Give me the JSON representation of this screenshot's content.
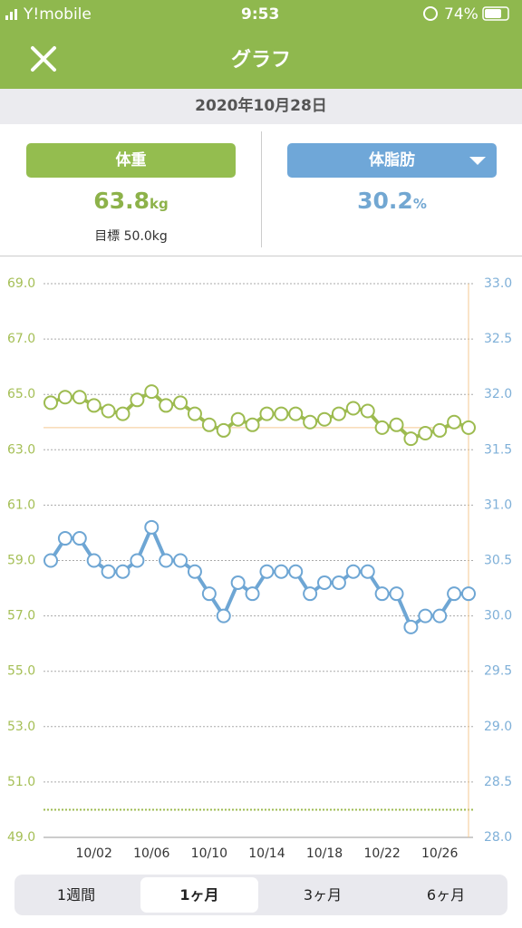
{
  "status_bar": {
    "carrier": "Y!mobile",
    "time": "9:53",
    "battery": "74%"
  },
  "header": {
    "title": "グラフ"
  },
  "date": "2020年10月28日",
  "weight": {
    "label": "体重",
    "value": "63.8",
    "unit": "kg",
    "goal": "目標 50.0kg"
  },
  "body_fat": {
    "label": "体脂肪",
    "value": "30.2",
    "unit": "%"
  },
  "chart_data": {
    "type": "line",
    "categories": [
      null,
      null,
      null,
      "10/02",
      null,
      null,
      null,
      "10/06",
      null,
      null,
      null,
      "10/10",
      null,
      null,
      null,
      "10/14",
      null,
      null,
      null,
      "10/18",
      null,
      null,
      null,
      "10/22",
      null,
      null,
      null,
      "10/26",
      null,
      null
    ],
    "series": [
      {
        "color": "#9dbb50",
        "values": [
          64.7,
          64.9,
          64.9,
          64.6,
          64.4,
          64.3,
          64.8,
          65.1,
          64.6,
          64.7,
          64.3,
          63.9,
          63.7,
          64.1,
          63.9,
          64.3,
          64.3,
          64.3,
          64.0,
          64.1,
          64.3,
          64.5,
          64.4,
          63.8,
          63.9,
          63.4,
          63.6,
          63.7,
          64.0,
          63.8
        ]
      },
      {
        "color": "#6ea6d4",
        "axis": "y2",
        "values": [
          30.5,
          30.7,
          30.7,
          30.5,
          30.4,
          30.4,
          30.5,
          30.8,
          30.5,
          30.5,
          30.4,
          30.2,
          30.0,
          30.3,
          30.2,
          30.4,
          30.4,
          30.4,
          30.2,
          30.3,
          30.3,
          30.4,
          30.4,
          30.2,
          30.2,
          29.9,
          30.0,
          30.0,
          30.2,
          30.2
        ]
      }
    ],
    "ylim": [
      49,
      69
    ],
    "yticks": [
      {
        "value": 49,
        "label": "49.0"
      },
      {
        "value": 51,
        "label": "51.0"
      },
      {
        "value": 53,
        "label": "53.0"
      },
      {
        "value": 55,
        "label": "55.0"
      },
      {
        "value": 57,
        "label": "57.0"
      },
      {
        "value": 59,
        "label": "59.0"
      },
      {
        "value": 61,
        "label": "61.0"
      },
      {
        "value": 63,
        "label": "63.0"
      },
      {
        "value": 65,
        "label": "65.0"
      },
      {
        "value": 67,
        "label": "67.0"
      },
      {
        "value": 69,
        "label": "69.0"
      }
    ],
    "y2lim": [
      28,
      33
    ],
    "y2ticks": [
      {
        "value": 28,
        "label": "28.0"
      },
      28.5,
      {
        "value": 29,
        "label": "29.0"
      },
      29.5,
      {
        "value": 30,
        "label": "30.0"
      },
      30.5,
      {
        "value": 31,
        "label": "31.0"
      },
      31.5,
      {
        "value": 32,
        "label": "32.0"
      },
      32.5,
      {
        "value": 33,
        "label": "33.0"
      }
    ],
    "target": 50,
    "grid": true
  },
  "tabs": [
    "1週間",
    "1ヶ月",
    "3ヶ月",
    "6ヶ月"
  ],
  "selected_tab": 1
}
